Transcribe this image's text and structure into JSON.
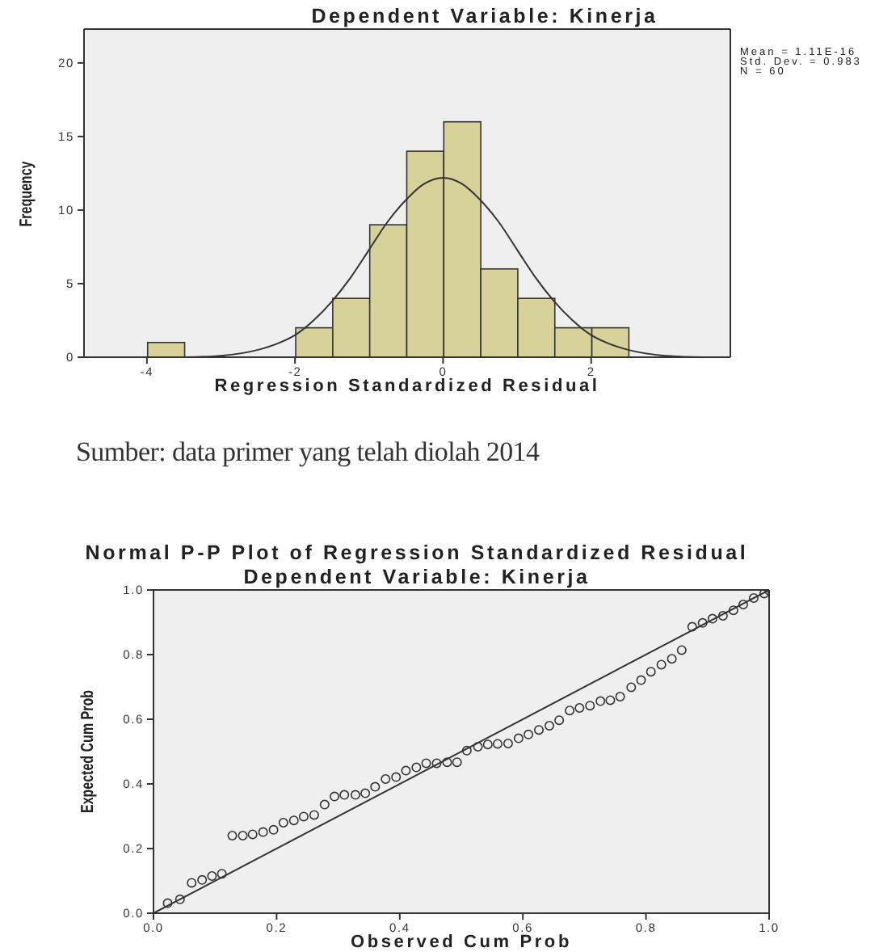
{
  "chart_data": [
    {
      "type": "histogram",
      "title": "Dependent Variable: Kinerja",
      "xlabel": "Regression Standardized Residual",
      "ylabel": "Frequency",
      "bins": [
        -4,
        -3.5,
        -3,
        -2.5,
        -2,
        -1.5,
        -1,
        -0.5,
        0,
        0.5,
        1,
        1.5,
        2,
        2.5
      ],
      "values": [
        1,
        0,
        0,
        0,
        2,
        4,
        9,
        14,
        16,
        6,
        4,
        2,
        2
      ],
      "color": "#d6d29a",
      "series": [
        {
          "type": "line",
          "color": "#333333",
          "x": [
            -4.85,
            -4,
            -3.5,
            -3,
            -2.5,
            -2.25,
            -2,
            -1.75,
            -1.5,
            -1.25,
            -1,
            -0.75,
            -0.5,
            -0.25,
            0,
            0.25,
            0.5,
            0.75,
            1,
            1.25,
            1.5,
            1.75,
            2,
            2.25,
            2.5,
            3,
            3.5,
            3.88
          ],
          "values": [
            0,
            0,
            0,
            0.1,
            0.5,
            0.9,
            1.5,
            2.5,
            3.8,
            5.4,
            7.3,
            9.2,
            10.7,
            11.8,
            12.2,
            11.8,
            10.7,
            9.2,
            7.3,
            5.4,
            3.8,
            2.5,
            1.5,
            0.9,
            0.5,
            0.1,
            0,
            0
          ]
        }
      ],
      "xlim": [
        -4.85,
        3.88
      ],
      "ylim": [
        0,
        22.3
      ],
      "xticks": [
        -4,
        -2,
        0,
        2
      ],
      "yticks": [
        0,
        5,
        10,
        15,
        20
      ],
      "grid": false,
      "annotations": [
        "Mean = 1.11E-16",
        "Std. Dev. = 0.983",
        "N = 60",
        "Sumber: data primer yang telah diolah 2014"
      ]
    },
    {
      "type": "scatter",
      "title": "Normal P-P Plot of Regression Standardized Residual",
      "subtitle": "Dependent Variable: Kinerja",
      "xlabel": "Observed Cum Prob",
      "ylabel": "Expected Cum Prob",
      "series": [
        {
          "type": "scatter",
          "color": "#333333",
          "marker": "circle",
          "x": [
            0.023,
            0.043,
            0.062,
            0.079,
            0.095,
            0.111,
            0.128,
            0.145,
            0.161,
            0.178,
            0.195,
            0.211,
            0.228,
            0.244,
            0.261,
            0.278,
            0.294,
            0.31,
            0.328,
            0.344,
            0.36,
            0.377,
            0.394,
            0.41,
            0.427,
            0.443,
            0.46,
            0.477,
            0.493,
            0.509,
            0.527,
            0.543,
            0.559,
            0.576,
            0.593,
            0.609,
            0.626,
            0.643,
            0.659,
            0.676,
            0.692,
            0.709,
            0.726,
            0.742,
            0.758,
            0.776,
            0.792,
            0.808,
            0.825,
            0.842,
            0.858,
            0.875,
            0.892,
            0.908,
            0.925,
            0.942,
            0.958,
            0.975,
            0.992,
            1.0
          ],
          "values": [
            0.031,
            0.043,
            0.094,
            0.103,
            0.115,
            0.122,
            0.24,
            0.24,
            0.244,
            0.251,
            0.258,
            0.28,
            0.287,
            0.299,
            0.304,
            0.336,
            0.361,
            0.366,
            0.366,
            0.371,
            0.391,
            0.415,
            0.421,
            0.441,
            0.451,
            0.464,
            0.464,
            0.467,
            0.467,
            0.503,
            0.515,
            0.522,
            0.524,
            0.525,
            0.541,
            0.553,
            0.567,
            0.58,
            0.597,
            0.627,
            0.635,
            0.642,
            0.656,
            0.659,
            0.67,
            0.699,
            0.721,
            0.747,
            0.769,
            0.787,
            0.814,
            0.886,
            0.898,
            0.911,
            0.92,
            0.937,
            0.955,
            0.975,
            0.989,
            0.998
          ]
        },
        {
          "type": "line",
          "color": "#333333",
          "x": [
            0,
            1
          ],
          "values": [
            0,
            1
          ]
        }
      ],
      "xlim": [
        0,
        1
      ],
      "ylim": [
        0,
        1
      ],
      "xticks": [
        {
          "value": 0,
          "label": "0.0"
        },
        {
          "value": 0.2,
          "label": "0.2"
        },
        {
          "value": 0.4,
          "label": "0.4"
        },
        {
          "value": 0.6,
          "label": "0.6"
        },
        {
          "value": 0.8,
          "label": "0.8"
        },
        {
          "value": 1,
          "label": "1.0"
        }
      ],
      "yticks": [
        {
          "value": 0,
          "label": "0.0"
        },
        {
          "value": 0.2,
          "label": "0.2"
        },
        {
          "value": 0.4,
          "label": "0.4"
        },
        {
          "value": 0.6,
          "label": "0.6"
        },
        {
          "value": 0.8,
          "label": "0.8"
        },
        {
          "value": 1,
          "label": "1.0"
        }
      ],
      "grid": false
    }
  ]
}
